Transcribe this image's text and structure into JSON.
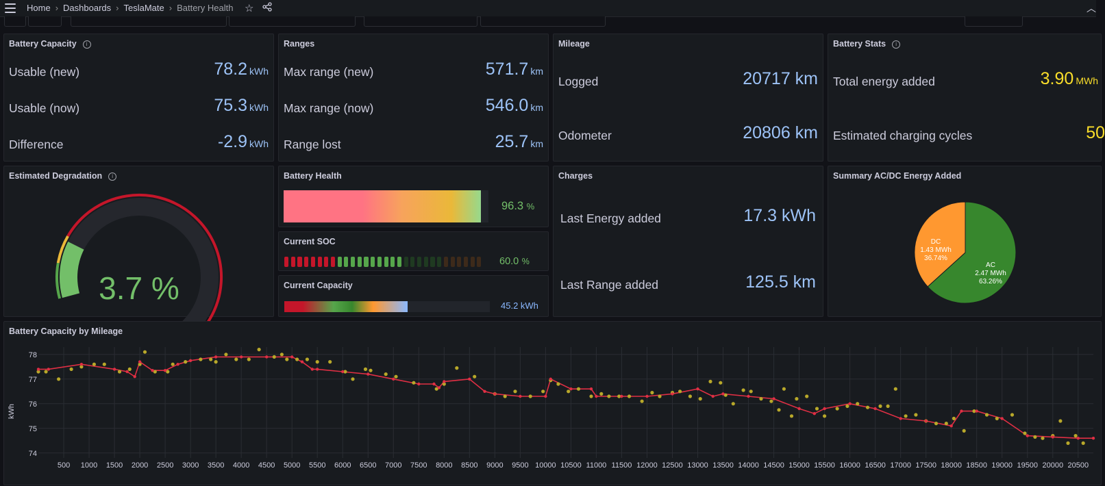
{
  "breadcrumb": {
    "home": "Home",
    "dashboards": "Dashboards",
    "app": "TeslaMate",
    "current": "Battery Health"
  },
  "icons": {
    "menu": "menu-icon",
    "star": "star-icon",
    "share": "share-icon",
    "chevron": "chevron-up-icon"
  },
  "battery_capacity": {
    "title": "Battery Capacity",
    "rows": [
      {
        "label": "Usable (new)",
        "value": "78.2",
        "unit": "kWh"
      },
      {
        "label": "Usable (now)",
        "value": "75.3",
        "unit": "kWh"
      },
      {
        "label": "Difference",
        "value": "-2.9",
        "unit": "kWh"
      }
    ]
  },
  "ranges": {
    "title": "Ranges",
    "rows": [
      {
        "label": "Max range (new)",
        "value": "571.7",
        "unit": "km"
      },
      {
        "label": "Max range (now)",
        "value": "546.0",
        "unit": "km"
      },
      {
        "label": "Range lost",
        "value": "25.7",
        "unit": "km"
      }
    ]
  },
  "mileage": {
    "title": "Mileage",
    "rows": [
      {
        "label": "Logged",
        "value": "20717 km"
      },
      {
        "label": "Odometer",
        "value": "20806 km"
      }
    ]
  },
  "battery_stats": {
    "title": "Battery Stats",
    "rows": [
      {
        "label": "Total energy added",
        "value": "3.90",
        "unit": "MWh"
      },
      {
        "label": "Estimated charging cycles",
        "value": "50"
      }
    ]
  },
  "degradation": {
    "title": "Estimated Degradation",
    "value_text": "3.7 %",
    "value": 3.7,
    "max": 100
  },
  "battery_health": {
    "title": "Battery Health",
    "value_text": "96.3",
    "unit": "%",
    "value": 96.3
  },
  "current_soc": {
    "title": "Current SOC",
    "value_text": "60.0",
    "unit": "%",
    "value": 60.0
  },
  "current_capacity": {
    "title": "Current Capacity",
    "value_text": "45.2 kWh",
    "fill_fraction": 0.6
  },
  "charges": {
    "title": "Charges",
    "rows": [
      {
        "label": "Last Energy added",
        "value": "17.3 kWh"
      },
      {
        "label": "Last Range added",
        "value": "125.5 km"
      }
    ]
  },
  "acdc": {
    "title": "Summary AC/DC Energy Added",
    "slices": [
      {
        "name": "AC",
        "value": "2.47 MWh",
        "percent": "63.26%",
        "share": 63.26,
        "color": "#37872d"
      },
      {
        "name": "DC",
        "value": "1.43 MWh",
        "percent": "36.74%",
        "share": 36.74,
        "color": "#ff9830"
      }
    ]
  },
  "chart_data": {
    "type": "line",
    "title": "Battery Capacity by Mileage",
    "ylabel": "kWh",
    "xlabel": "",
    "xlim": [
      0,
      20800
    ],
    "ylim": [
      73.8,
      78.3
    ],
    "yticks": [
      74,
      75,
      76,
      77,
      78
    ],
    "xticks": [
      500,
      1000,
      1500,
      2000,
      2500,
      3000,
      3500,
      4000,
      4500,
      5000,
      5500,
      6000,
      6500,
      7000,
      7500,
      8000,
      8500,
      9000,
      9500,
      10000,
      10500,
      11000,
      11500,
      12000,
      12500,
      13000,
      13500,
      14000,
      14500,
      15000,
      15500,
      16000,
      16500,
      17000,
      17500,
      18000,
      18500,
      19000,
      19500,
      20000,
      20500
    ],
    "series": [
      {
        "type": "line",
        "color": "#e02f44",
        "x": [
          0,
          200,
          850,
          1500,
          1750,
          1900,
          2000,
          2250,
          2500,
          2750,
          3000,
          3500,
          4000,
          4500,
          5000,
          5200,
          5400,
          5500,
          6000,
          6500,
          7000,
          7500,
          7800,
          7900,
          8000,
          8500,
          8800,
          9000,
          9500,
          10000,
          10100,
          10500,
          10900,
          11000,
          11500,
          12000,
          12500,
          13000,
          13300,
          13500,
          14000,
          14500,
          15000,
          15300,
          15500,
          16000,
          16500,
          17000,
          17500,
          18000,
          18200,
          18500,
          19000,
          19500,
          20000,
          20500,
          20800
        ],
        "y": [
          77.4,
          77.4,
          77.6,
          77.4,
          77.3,
          77.1,
          77.7,
          77.35,
          77.35,
          77.6,
          77.75,
          77.9,
          77.9,
          77.9,
          77.9,
          77.7,
          77.4,
          77.4,
          77.3,
          77.2,
          77.0,
          76.8,
          76.8,
          76.65,
          76.9,
          77.0,
          76.5,
          76.4,
          76.3,
          76.3,
          77.0,
          76.6,
          76.6,
          76.3,
          76.3,
          76.3,
          76.4,
          76.6,
          76.3,
          76.4,
          76.3,
          76.2,
          75.8,
          75.6,
          75.8,
          76.0,
          75.8,
          75.4,
          75.3,
          75.1,
          75.7,
          75.7,
          75.4,
          74.7,
          74.65,
          74.6,
          74.6
        ]
      },
      {
        "type": "scatter",
        "color": "#b8a82a",
        "x": [
          0,
          150,
          400,
          650,
          850,
          1100,
          1300,
          1600,
          1800,
          2000,
          2100,
          2300,
          2550,
          2650,
          2900,
          3200,
          3400,
          3500,
          3700,
          3900,
          4150,
          4350,
          4650,
          4800,
          4900,
          5100,
          5300,
          5500,
          5750,
          6050,
          6200,
          6450,
          6550,
          6850,
          7050,
          7400,
          7850,
          8000,
          8250,
          8600,
          9000,
          9200,
          9400,
          9700,
          9950,
          10100,
          10250,
          10450,
          10650,
          10900,
          11100,
          11250,
          11450,
          11650,
          11900,
          12100,
          12250,
          12500,
          12650,
          12850,
          13050,
          13250,
          13450,
          13550,
          13700,
          13900,
          14050,
          14250,
          14450,
          14600,
          14700,
          14850,
          14950,
          15150,
          15350,
          15500,
          15750,
          15950,
          16150,
          16350,
          16600,
          16750,
          16900,
          17100,
          17300,
          17500,
          17700,
          17900,
          18050,
          18250,
          18450,
          18700,
          18900,
          19200,
          19450,
          19650,
          19800,
          20000,
          20150,
          20300,
          20450,
          20600
        ],
        "y": [
          77.3,
          77.3,
          77.0,
          77.4,
          77.5,
          77.6,
          77.6,
          77.3,
          77.4,
          77.6,
          78.1,
          77.3,
          77.3,
          77.6,
          77.7,
          77.8,
          77.8,
          77.7,
          78.0,
          77.8,
          77.8,
          78.2,
          77.9,
          78.0,
          77.8,
          77.8,
          77.8,
          77.7,
          77.7,
          77.3,
          77.0,
          77.4,
          77.35,
          77.2,
          77.1,
          76.85,
          76.6,
          76.8,
          77.45,
          77.1,
          76.4,
          76.3,
          76.5,
          76.3,
          76.5,
          76.95,
          76.8,
          76.5,
          76.6,
          76.3,
          76.4,
          76.3,
          76.3,
          76.3,
          76.1,
          76.45,
          76.3,
          76.45,
          76.5,
          76.3,
          76.2,
          76.9,
          76.85,
          76.35,
          76.0,
          76.55,
          76.5,
          76.2,
          76.1,
          75.75,
          76.6,
          75.5,
          76.2,
          76.3,
          75.8,
          75.5,
          75.8,
          75.9,
          76.0,
          75.85,
          75.9,
          75.9,
          76.6,
          75.5,
          75.55,
          75.3,
          75.2,
          75.2,
          75.4,
          74.9,
          75.7,
          75.55,
          75.4,
          75.55,
          74.8,
          74.65,
          74.6,
          74.7,
          75.3,
          74.4,
          74.7,
          74.4
        ]
      }
    ]
  }
}
